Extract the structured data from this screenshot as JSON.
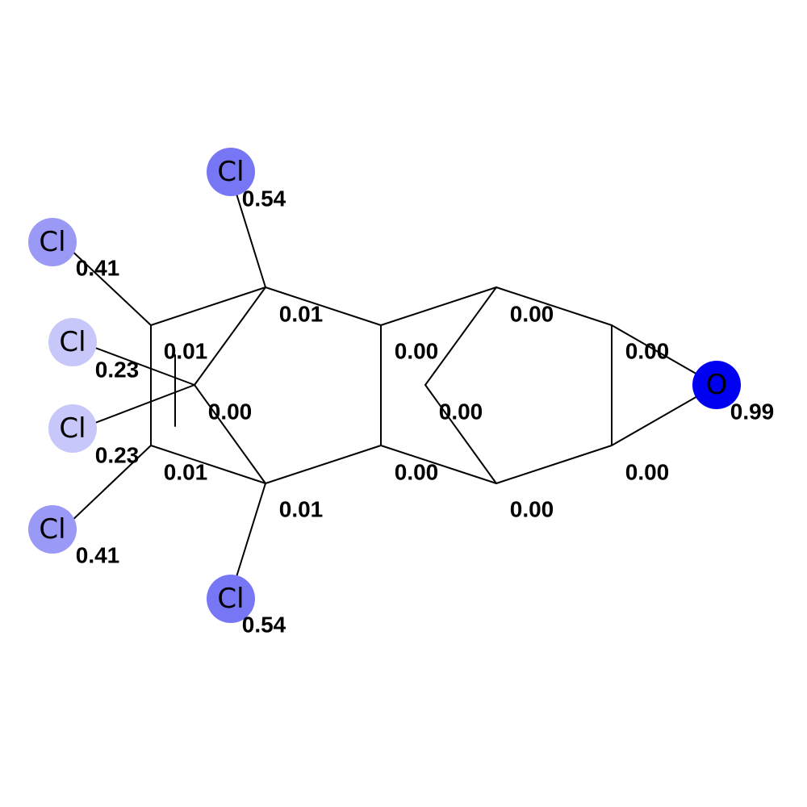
{
  "atoms": [
    {
      "id": "cl_top",
      "element": "Cl",
      "score": "0.54",
      "color": "#7777f5"
    },
    {
      "id": "cl_left_upper",
      "element": "Cl",
      "score": "0.41",
      "color": "#9a9af6"
    },
    {
      "id": "cl_left_mid_upper",
      "element": "Cl",
      "score": "0.23",
      "color": "#c7c7f9"
    },
    {
      "id": "cl_left_mid_lower",
      "element": "Cl",
      "score": "0.23",
      "color": "#c7c7f9"
    },
    {
      "id": "cl_left_lower",
      "element": "Cl",
      "score": "0.41",
      "color": "#9a9af6"
    },
    {
      "id": "cl_bottom",
      "element": "Cl",
      "score": "0.54",
      "color": "#7777f5"
    },
    {
      "id": "o_epoxide",
      "element": "O",
      "score": "0.99",
      "color": "#0000f0"
    },
    {
      "id": "c_1",
      "element": "",
      "score": "0.01"
    },
    {
      "id": "c_2",
      "element": "",
      "score": "0.01"
    },
    {
      "id": "c_3",
      "element": "",
      "score": "0.00"
    },
    {
      "id": "c_4",
      "element": "",
      "score": "0.01"
    },
    {
      "id": "c_5",
      "element": "",
      "score": "0.01"
    },
    {
      "id": "c_6",
      "element": "",
      "score": "0.00"
    },
    {
      "id": "c_7",
      "element": "",
      "score": "0.00"
    },
    {
      "id": "c_8",
      "element": "",
      "score": "0.00"
    },
    {
      "id": "c_9",
      "element": "",
      "score": "0.00"
    },
    {
      "id": "c_10",
      "element": "",
      "score": "0.00"
    },
    {
      "id": "c_11",
      "element": "",
      "score": "0.00"
    },
    {
      "id": "c_12",
      "element": "",
      "score": "0.00"
    }
  ]
}
